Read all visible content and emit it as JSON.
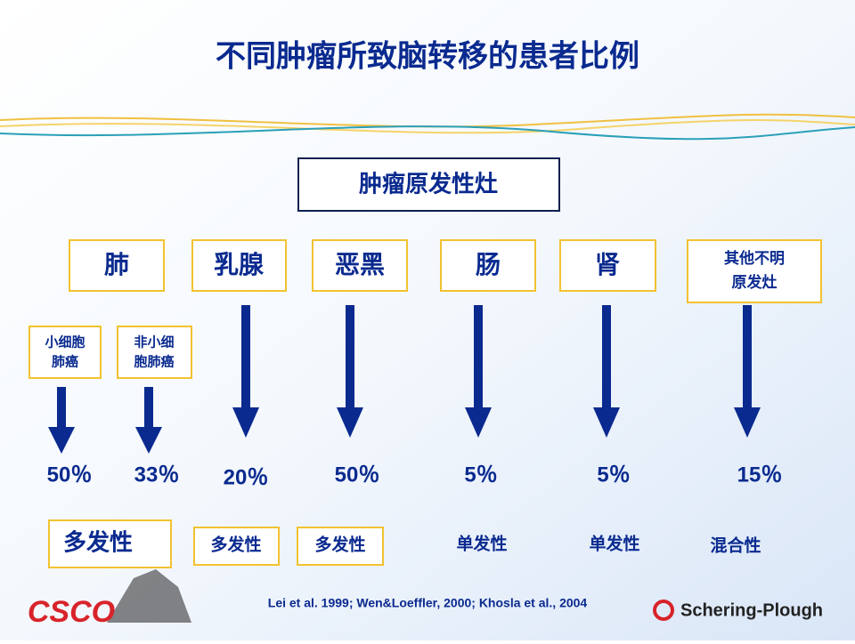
{
  "title": "不同肿瘤所致脑转移的患者比例",
  "root": "肿瘤原发性灶",
  "sites": [
    {
      "label": [
        "肺"
      ]
    },
    {
      "label": [
        "乳腺"
      ],
      "percent": "20％",
      "pattern": "多发性"
    },
    {
      "label": [
        "恶黑"
      ],
      "percent": "50％",
      "pattern": "多发性"
    },
    {
      "label": [
        "肠"
      ],
      "percent": "5％",
      "pattern": "单发性"
    },
    {
      "label": [
        "肾"
      ],
      "percent": "5％",
      "pattern": "单发性"
    },
    {
      "label": [
        "其他不明",
        "原发灶"
      ],
      "percent": "15％",
      "pattern": "混合性"
    }
  ],
  "lung_subtypes": [
    {
      "label": [
        "小细胞",
        "肺癌"
      ],
      "percent": "50％"
    },
    {
      "label": [
        "非小细",
        "胞肺癌"
      ],
      "percent": "33％"
    }
  ],
  "lung_pattern": "多发性",
  "citation": "Lei  et al. 1999; Wen&Loeffler, 2000; Khosla et al., 2004",
  "logos": [
    "CSCO",
    "Schering-Plough"
  ]
}
